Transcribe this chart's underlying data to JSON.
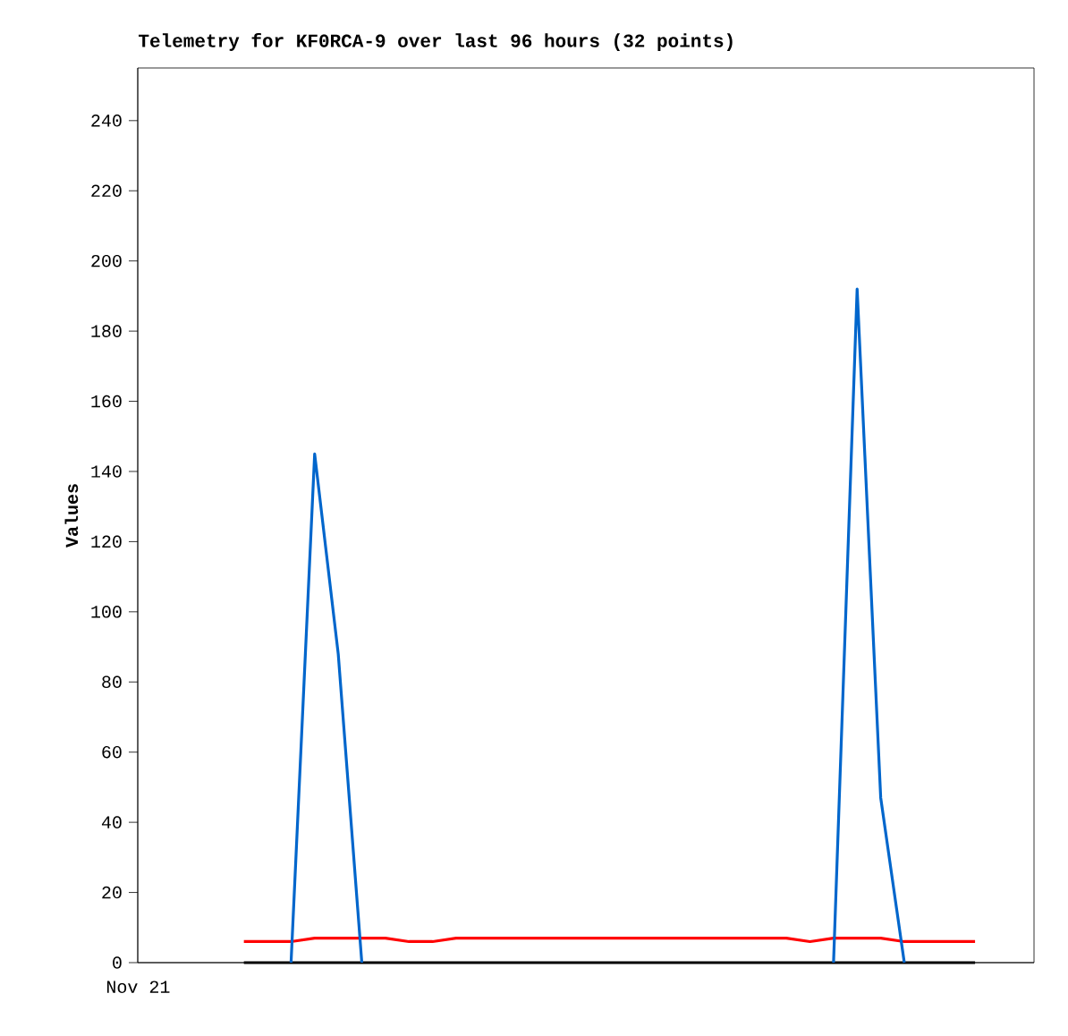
{
  "chart_data": {
    "type": "line",
    "title": "Telemetry for KF0RCA-9 over last 96 hours (32 points)",
    "ylabel": "Values",
    "annotations": [
      "Nov 21"
    ],
    "categories": [
      null,
      null,
      null,
      null,
      null,
      null,
      null,
      null,
      null,
      null,
      null,
      null,
      null,
      null,
      null,
      null,
      null,
      null,
      null,
      null,
      null,
      null,
      null,
      null,
      null,
      null,
      null,
      null,
      null,
      null,
      null,
      null,
      null,
      null,
      null,
      null,
      null,
      null
    ],
    "ylim": [
      0,
      255
    ],
    "yticks": [
      0,
      20,
      40,
      60,
      80,
      100,
      120,
      140,
      160,
      180,
      200,
      220,
      240
    ],
    "series": [
      {
        "color": "#000000",
        "values": [
          null,
          null,
          null,
          null,
          0,
          0,
          0,
          0,
          0,
          0,
          0,
          0,
          0,
          0,
          0,
          0,
          0,
          0,
          0,
          0,
          0,
          0,
          0,
          0,
          0,
          0,
          0,
          0,
          0,
          0,
          0,
          0,
          0,
          0,
          0,
          0,
          null,
          null
        ]
      },
      {
        "color": "#ff0000",
        "values": [
          null,
          null,
          null,
          null,
          6,
          6,
          6,
          7,
          7,
          7,
          7,
          6,
          6,
          7,
          7,
          7,
          7,
          7,
          7,
          7,
          7,
          7,
          7,
          7,
          7,
          7,
          7,
          7,
          6,
          7,
          7,
          7,
          6,
          6,
          6,
          6,
          null,
          null
        ]
      },
      {
        "color": "#0066cc",
        "values": [
          null,
          null,
          null,
          null,
          null,
          null,
          0,
          145,
          88,
          0,
          null,
          null,
          null,
          null,
          null,
          null,
          null,
          null,
          null,
          null,
          null,
          null,
          null,
          null,
          null,
          null,
          null,
          null,
          null,
          0,
          192,
          47,
          0,
          null,
          null,
          null,
          null,
          null
        ]
      }
    ]
  }
}
